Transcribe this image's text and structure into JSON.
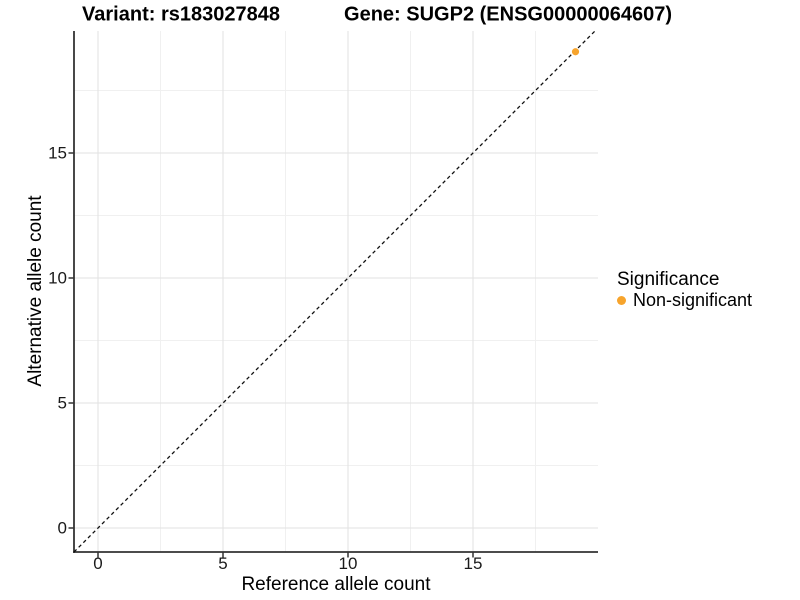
{
  "chart_data": {
    "type": "scatter",
    "titles": {
      "left": "Variant: rs183027848",
      "right": "Gene: SUGP2 (ENSG00000064607)"
    },
    "xlabel": "Reference allele count",
    "ylabel": "Alternative allele count",
    "xlim": [
      -0.96,
      20.0
    ],
    "ylim": [
      -0.96,
      19.88
    ],
    "x_ticks": [
      0,
      5,
      10,
      15
    ],
    "y_ticks": [
      0,
      5,
      10,
      15
    ],
    "x_minor_ticks": [
      2.5,
      7.5,
      12.5,
      17.5
    ],
    "y_minor_ticks": [
      2.5,
      7.5,
      12.5,
      17.5
    ],
    "grid": "major and minor gridlines on white panel",
    "identity_line": {
      "type": "y=x",
      "style": "dashed",
      "color": "#111111"
    },
    "series": [
      {
        "name": "Non-significant",
        "color": "#F7A42C",
        "points": [
          {
            "x": 19.1,
            "y": 19.05
          }
        ]
      }
    ],
    "legend": {
      "title": "Significance",
      "position": "right",
      "items": [
        {
          "label": "Non-significant",
          "color": "#F7A42C"
        }
      ]
    },
    "colors": {
      "background": "#FFFFFF",
      "axis_line": "#333333",
      "tick_mark": "#333333",
      "major_grid": "#E2E2E2",
      "minor_grid": "#F0F0F0",
      "text": "#000000"
    }
  }
}
